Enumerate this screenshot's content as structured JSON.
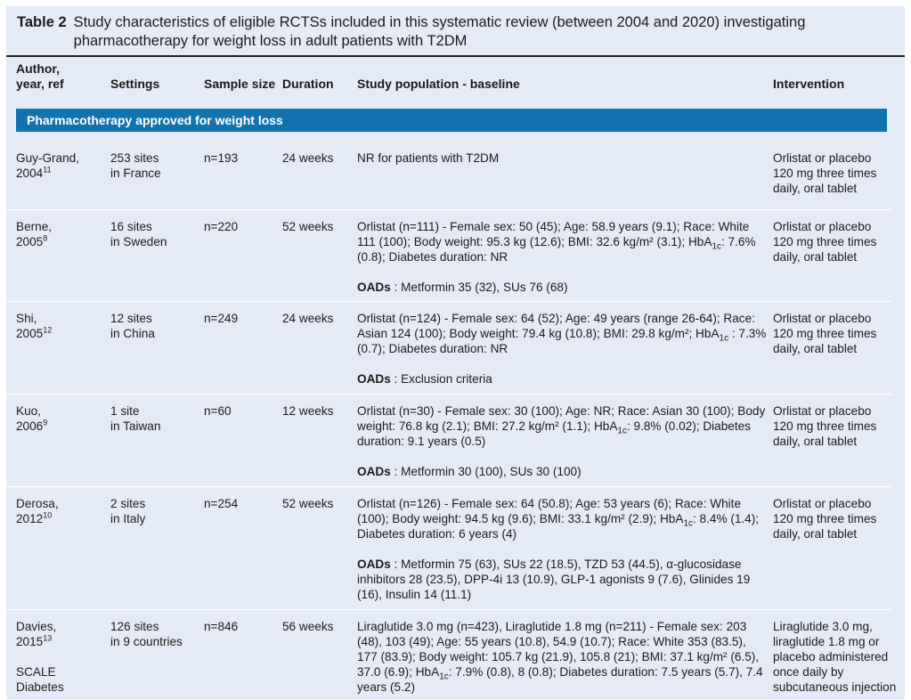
{
  "caption": {
    "label": "Table 2",
    "text": "Study characteristics of eligible RCTSs included in this systematic review (between 2004 and 2020) investigating pharmacotherapy for weight loss in adult patients with T2DM"
  },
  "headers": {
    "author_line1": "Author,",
    "author_line2": "year, ref",
    "settings": "Settings",
    "sample_size": "Sample size",
    "duration": "Duration",
    "population": "Study population - baseline",
    "intervention": "Intervention"
  },
  "section": "Pharmacotherapy approved for weight loss",
  "colors": {
    "band": "#1272ad",
    "panel": "#e5ebf6"
  },
  "rows": [
    {
      "author": "Guy-Grand,",
      "year": "2004",
      "ref": "11",
      "settings": [
        "253 sites",
        "in France"
      ],
      "sample": "n=193",
      "duration": "24 weeks",
      "population": [
        {
          "text": "NR for patients with T2DM"
        }
      ],
      "intervention": [
        "Orlistat or placebo",
        "120 mg three times",
        "daily, oral tablet"
      ]
    },
    {
      "author": "Berne,",
      "year": "2005",
      "ref": "8",
      "settings": [
        "16 sites",
        "in Sweden"
      ],
      "sample": "n=220",
      "duration": "52 weeks",
      "population": [
        {
          "text": "Orlistat (n=111) - Female sex: 50 (45); Age: 58.9 years (9.1); Race: White 111 (100); Body weight: 95.3 kg (12.6); BMI: 32.6 kg/m² (3.1); HbA1c: 7.6% (0.8); Diabetes duration: NR"
        },
        {
          "label": "OADs",
          "text": " : Metformin 35 (32), SUs 76 (68)"
        }
      ],
      "intervention": [
        "Orlistat or placebo",
        "120 mg three times",
        "daily, oral tablet"
      ]
    },
    {
      "author": "Shi,",
      "year": "2005",
      "ref": "12",
      "settings": [
        "12 sites",
        "in China"
      ],
      "sample": "n=249",
      "duration": "24 weeks",
      "population": [
        {
          "text": "Orlistat (n=124) - Female sex: 64 (52); Age: 49 years (range 26-64); Race: Asian 124 (100); Body weight: 79.4 kg (10.8); BMI: 29.8 kg/m²; HbA1c : 7.3% (0.7); Diabetes duration: NR"
        },
        {
          "label": "OADs",
          "text": " : Exclusion criteria"
        }
      ],
      "intervention": [
        "Orlistat or placebo",
        "120 mg three times",
        "daily, oral tablet"
      ]
    },
    {
      "author": "Kuo,",
      "year": "2006",
      "ref": "9",
      "settings": [
        "1 site",
        "in Taiwan"
      ],
      "sample": "n=60",
      "duration": "12 weeks",
      "population": [
        {
          "text": "Orlistat (n=30) - Female sex: 30 (100); Age: NR; Race: Asian 30 (100); Body weight: 76.8 kg (2.1); BMI: 27.2 kg/m² (1.1); HbA1c: 9.8% (0.02); Diabetes duration: 9.1 years (0.5)"
        },
        {
          "label": "OADs",
          "text": " : Metformin 30 (100), SUs 30 (100)"
        }
      ],
      "intervention": [
        "Orlistat or placebo",
        "120 mg three times",
        "daily, oral tablet"
      ]
    },
    {
      "author": "Derosa,",
      "year": "2012",
      "ref": "10",
      "settings": [
        "2 sites",
        "in Italy"
      ],
      "sample": "n=254",
      "duration": "52 weeks",
      "population": [
        {
          "text": "Orlistat (n=126) - Female sex: 64 (50.8); Age: 53 years (6); Race: White (100); Body weight:  94.5 kg (9.6); BMI: 33.1 kg/m² (2.9); HbA1c: 8.4% (1.4); Diabetes duration: 6 years (4)"
        },
        {
          "label": "OADs",
          "text": " : Metformin 75 (63), SUs 22 (18.5), TZD 53 (44.5), α-glucosidase inhibitors 28 (23.5), DPP-4i 13 (10.9), GLP-1 agonists 9 (7.6), Glinides 19 (16), Insulin 14 (11.1)"
        }
      ],
      "intervention": [
        "Orlistat or placebo",
        "120 mg three times",
        "daily, oral tablet"
      ]
    },
    {
      "author": "Davies,",
      "year": "2015",
      "ref": "13",
      "extra": "SCALE Diabetes",
      "settings": [
        "126 sites",
        "in 9 countries"
      ],
      "sample": "n=846",
      "duration": "56 weeks",
      "population": [
        {
          "text": "Liraglutide 3.0 mg (n=423), Liraglutide 1.8 mg (n=211) - Female sex: 203 (48), 103 (49); Age: 55 years (10.8), 54.9 (10.7); Race: White 353 (83.5), 177 (83.9); Body weight: 105.7 kg (21.9), 105.8 (21); BMI: 37.1 kg/m² (6.5), 37.0 (6.9); HbA1c: 7.9% (0.8), 8 (0.8); Diabetes duration: 7.5 years (5.7), 7.4 years (5.2)"
        }
      ],
      "intervention": [
        "Liraglutide 3.0 mg,",
        "liraglutide 1.8 mg or",
        "placebo administered",
        "once daily by",
        "subcutaneous injection"
      ]
    }
  ]
}
